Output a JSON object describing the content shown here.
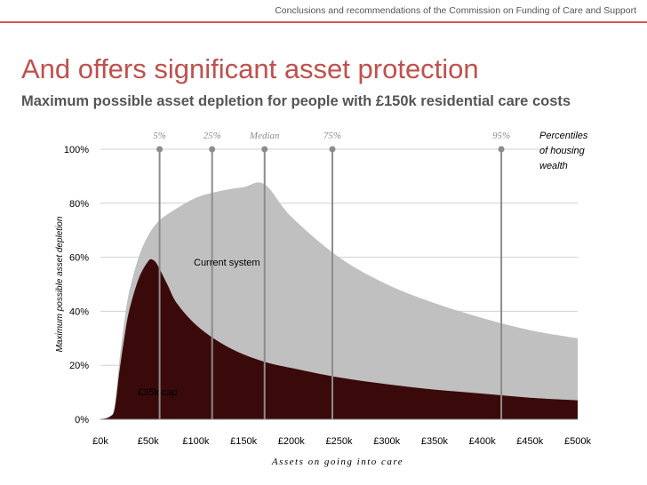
{
  "header": {
    "caption": "Conclusions and recommendations of the Commission on Funding of Care and Support",
    "rule_color": "#d9534f"
  },
  "title": "And offers significant asset protection",
  "subtitle": "Maximum possible asset depletion for people with £150k residential care costs",
  "chart_data": {
    "type": "area",
    "xlabel": "Assets on going into care",
    "ylabel": "Maximum possible asset depletion",
    "xlim": [
      0,
      500
    ],
    "ylim": [
      0,
      100
    ],
    "x_ticks": [
      "£0k",
      "£50k",
      "£100k",
      "£150k",
      "£200k",
      "£250k",
      "£300k",
      "£350k",
      "£400k",
      "£450k",
      "£500k"
    ],
    "y_ticks": [
      "0%",
      "20%",
      "40%",
      "60%",
      "80%",
      "100%"
    ],
    "grid": true,
    "series": [
      {
        "name": "Current system",
        "color": "#c0c0c0",
        "x": [
          0,
          10,
          15,
          20,
          25,
          30,
          40,
          50,
          60,
          75,
          100,
          125,
          150,
          172,
          200,
          250,
          300,
          350,
          400,
          450,
          500
        ],
        "y": [
          0,
          1,
          5,
          22,
          36,
          47,
          60,
          68,
          73,
          77,
          82,
          84.5,
          86,
          87,
          75,
          60,
          50,
          43,
          37.5,
          33,
          30
        ]
      },
      {
        "name": "£35k cap",
        "color": "#3a0a0a",
        "x": [
          0,
          10,
          15,
          20,
          25,
          30,
          40,
          50,
          55,
          60,
          70,
          80,
          100,
          125,
          150,
          175,
          200,
          250,
          300,
          350,
          400,
          450,
          500
        ],
        "y": [
          0,
          1,
          4,
          18,
          30,
          40,
          52,
          58.5,
          59,
          57,
          50,
          43,
          35,
          28.5,
          24,
          21,
          19,
          15.5,
          13,
          11,
          9.5,
          8,
          7
        ]
      }
    ],
    "percentile_markers": [
      {
        "label": "5%",
        "x": 62
      },
      {
        "label": "25%",
        "x": 117
      },
      {
        "label": "Median",
        "x": 172
      },
      {
        "label": "75%",
        "x": 243
      },
      {
        "label": "95%",
        "x": 420
      }
    ],
    "percentile_note": [
      "Percentiles",
      "of housing",
      "wealth"
    ]
  }
}
